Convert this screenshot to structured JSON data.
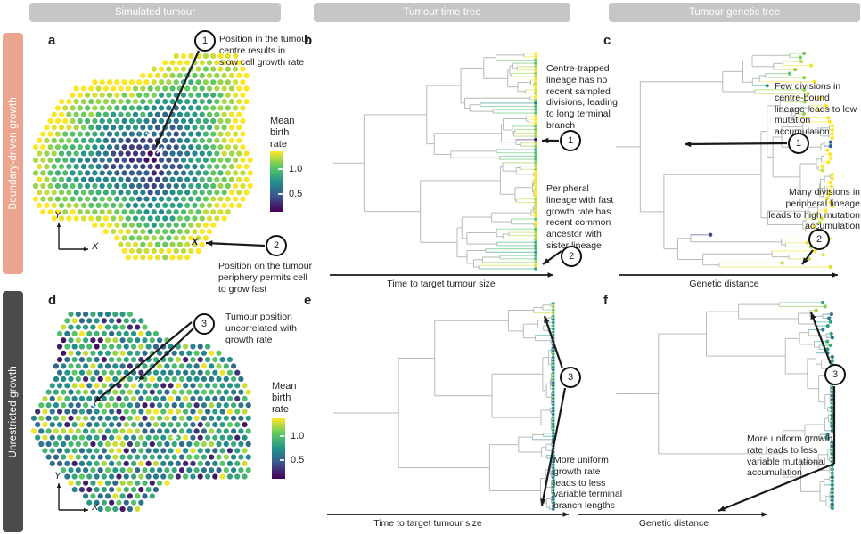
{
  "headers": [
    "Simulated tumour",
    "Tumour time tree",
    "Tumour genetic tree"
  ],
  "rows": [
    {
      "label": "Boundary-driven growth",
      "color": "#eba48e"
    },
    {
      "label": "Unrestricted growth",
      "color": "#4b4b4b"
    }
  ],
  "panels": {
    "a": {
      "letter": "a"
    },
    "b": {
      "letter": "b"
    },
    "c": {
      "letter": "c"
    },
    "d": {
      "letter": "d"
    },
    "e": {
      "letter": "e"
    },
    "f": {
      "letter": "f"
    }
  },
  "colorbar": {
    "title": "Mean\nbirth\nrate",
    "tick_top": "1.0",
    "tick_bottom": "0.5"
  },
  "axes": {
    "x": "X",
    "y": "Y"
  },
  "markers": {
    "peripheral_cell": "X"
  },
  "axis_labels": {
    "time": "Time to target tumour size",
    "genetic": "Genetic distance"
  },
  "annotations": {
    "a1": {
      "num": "1",
      "text": "Position in the tumour\ncentre results in\nslow cell growth rate"
    },
    "a2": {
      "num": "2",
      "text": "Position on the tumour\nperiphery permits cell\nto grow fast"
    },
    "b1": {
      "num": "1",
      "text": "Centre-trapped\nlineage has no\nrecent sampled\ndivisions, leading\nto long terminal\nbranch"
    },
    "b2": {
      "num": "2",
      "text": "Peripheral\nlineage with fast\ngrowth rate has\nrecent common\nancestor with\nsister lineage"
    },
    "c1": {
      "num": "1",
      "text": "Few divisions in\ncentre-bound\nlineage leads to low\nmutation\naccumulation"
    },
    "c2": {
      "num": "2",
      "text": "Many divisions in\nperipheral lineage\nleads to high mutation\naccumulation"
    },
    "d3": {
      "num": "3",
      "text": "Tumour position\nuncorrelated with\ngrowth rate"
    },
    "e3": {
      "num": "3",
      "text": "More uniform\ngrowth rate\nleads to less\nvariable terminal\nbranch lengths"
    },
    "f3": {
      "num": "3",
      "text": "More uniform growth\nrate leads to less\nvariable mutational\naccumulation"
    }
  },
  "render": {
    "colormap": [
      "#440154",
      "#3b528b",
      "#21918c",
      "#5ec962",
      "#fde725"
    ],
    "header_bg": "#c6c6c6",
    "ink": "#1a1a1a",
    "branch_grey": "#b4bdb6",
    "viridis_low_label": "0.5",
    "viridis_high_label": "1.0"
  }
}
